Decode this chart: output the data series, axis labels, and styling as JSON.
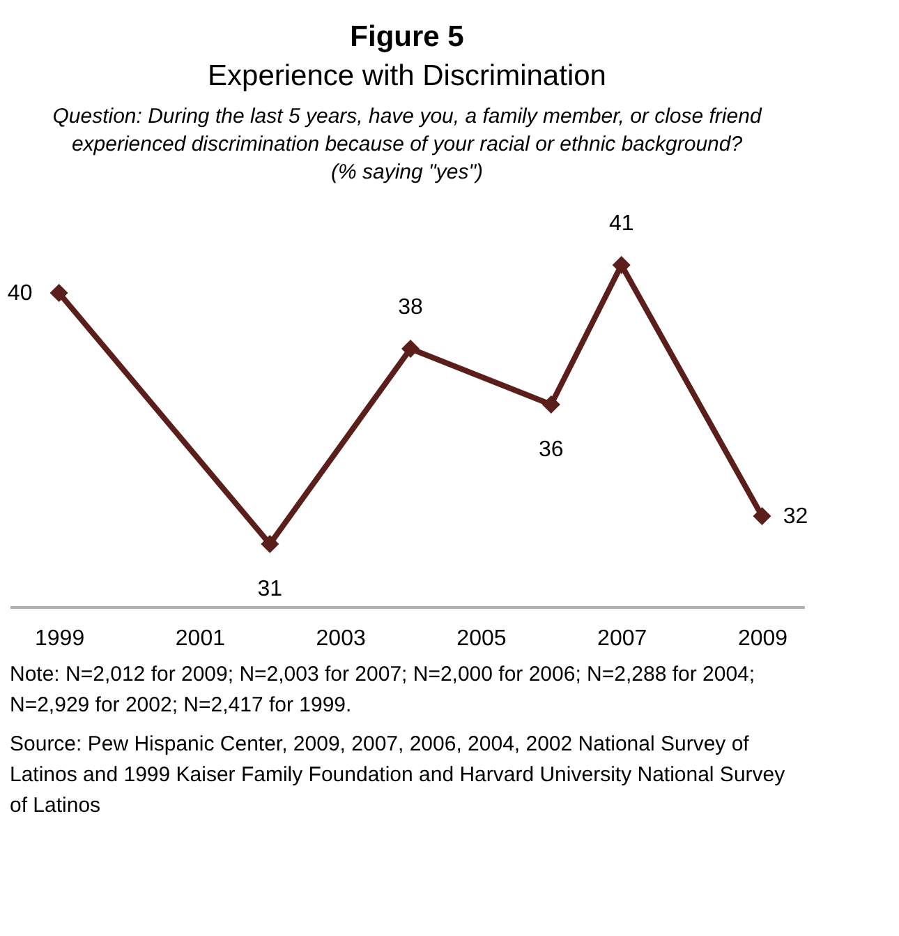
{
  "chart_data": {
    "type": "line",
    "title": "Figure 5",
    "subtitle": "Experience with Discrimination",
    "annotations": [
      "Question: During the last 5 years, have you, a family member, or close friend experienced discrimination because of your racial or ethnic background?",
      "(% saying \"yes\")",
      "Note: N=2,012 for 2009; N=2,003 for 2007; N=2,000 for 2006; N=2,288 for 2004; N=2,929 for 2002; N=2,417 for 1999.",
      "Source: Pew Hispanic Center, 2009, 2007, 2006, 2004, 2002 National Survey of Latinos and 1999 Kaiser Family Foundation and Harvard University National Survey of Latinos"
    ],
    "x": [
      1999,
      2002,
      2004,
      2006,
      2007,
      2009
    ],
    "series": [
      {
        "color": "#5a1f1a",
        "values": [
          40,
          31,
          38,
          36,
          41,
          32
        ]
      }
    ],
    "xlim": [
      1998.3,
      2009.6
    ],
    "xticks": [
      1999,
      2001,
      2003,
      2005,
      2007,
      2009
    ],
    "tick_labels": "x",
    "data_labels": true,
    "marker": "diamond",
    "line_style": "solid",
    "grid": false
  }
}
